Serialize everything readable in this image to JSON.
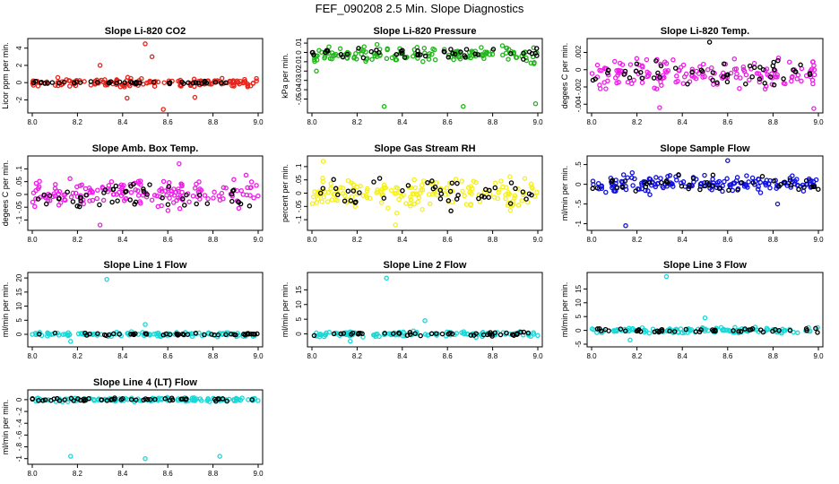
{
  "page_title": "FEF_090208  2.5 Min. Slope Diagnostics",
  "chart_data": [
    {
      "type": "scatter",
      "title": "Slope Li-820 CO2",
      "ylabel": "Licor ppm per min.",
      "xlim": [
        8.0,
        9.0
      ],
      "ylim": [
        -3.2,
        4.8
      ],
      "yticks": [
        -2,
        0,
        2,
        4
      ],
      "xticks": [
        8.0,
        8.2,
        8.4,
        8.6,
        8.8,
        9.0
      ],
      "series": [
        {
          "name": "fill",
          "color": "#e8231a",
          "n": 150,
          "spread": 0.4,
          "outliers": [
            [
              8.5,
              4.5
            ],
            [
              8.53,
              3.0
            ],
            [
              8.42,
              -1.8
            ],
            [
              8.58,
              -3.1
            ],
            [
              8.72,
              -1.7
            ],
            [
              8.3,
              2.0
            ]
          ]
        },
        {
          "name": "black",
          "color": "#000000",
          "n": 45,
          "spread": 0.12
        }
      ]
    },
    {
      "type": "scatter",
      "title": "Slope Li-820 Pressure",
      "ylabel": "kPa per min.",
      "xlim": [
        8.0,
        9.0
      ],
      "ylim": [
        -0.062,
        0.012
      ],
      "yticks": [
        0.01,
        0.0,
        -0.01,
        -0.02,
        -0.03,
        -0.04,
        -0.05
      ],
      "xticks": [
        8.0,
        8.2,
        8.4,
        8.6,
        8.8,
        9.0
      ],
      "series": [
        {
          "name": "fill",
          "color": "#22b51c",
          "n": 150,
          "spread": 0.0065,
          "center": -0.002,
          "outliers": [
            [
              8.32,
              -0.058
            ],
            [
              8.67,
              -0.058
            ],
            [
              8.99,
              -0.055
            ],
            [
              8.02,
              -0.02
            ]
          ]
        },
        {
          "name": "black",
          "color": "#000000",
          "n": 45,
          "spread": 0.004,
          "center": -0.001
        }
      ]
    },
    {
      "type": "scatter",
      "title": "Slope Li-820 Temp.",
      "ylabel": "degees C per min.",
      "xlim": [
        8.0,
        9.0
      ],
      "ylim": [
        -0.0047,
        0.0033
      ],
      "yticks": [
        0.002,
        0.0,
        -0.002,
        -0.004
      ],
      "xticks": [
        8.0,
        8.2,
        8.4,
        8.6,
        8.8,
        9.0
      ],
      "series": [
        {
          "name": "fill",
          "color": "#ee1ee8",
          "n": 160,
          "spread": 0.0014,
          "center": -0.0005,
          "outliers": [
            [
              8.98,
              -0.0045
            ],
            [
              8.3,
              -0.0044
            ]
          ]
        },
        {
          "name": "black",
          "color": "#000000",
          "n": 50,
          "spread": 0.0012,
          "center": -0.0003,
          "outliers": [
            [
              8.52,
              0.0032
            ]
          ]
        }
      ]
    },
    {
      "type": "scatter",
      "title": "Slope Amb. Box Temp.",
      "ylabel": "degees C per min.",
      "xlim": [
        8.0,
        9.0
      ],
      "ylim": [
        -0.13,
        0.14
      ],
      "yticks": [
        -0.1,
        -0.05,
        0.0,
        0.05,
        0.1
      ],
      "xticks": [
        8.0,
        8.2,
        8.4,
        8.6,
        8.8,
        9.0
      ],
      "series": [
        {
          "name": "fill",
          "color": "#ee1ee8",
          "n": 170,
          "spread": 0.045,
          "outliers": [
            [
              8.65,
              0.12
            ],
            [
              8.3,
              -0.12
            ]
          ]
        },
        {
          "name": "black",
          "color": "#000000",
          "n": 50,
          "spread": 0.04
        }
      ]
    },
    {
      "type": "scatter",
      "title": "Slope Gas Stream RH",
      "ylabel": "percent per min.",
      "xlim": [
        8.0,
        9.0
      ],
      "ylim": [
        -0.13,
        0.13
      ],
      "yticks": [
        -0.1,
        -0.05,
        0.0,
        0.05,
        0.1
      ],
      "xticks": [
        8.0,
        8.2,
        8.4,
        8.6,
        8.8,
        9.0
      ],
      "series": [
        {
          "name": "fill",
          "color": "#f5f01c",
          "n": 170,
          "spread": 0.045,
          "outliers": [
            [
              8.05,
              0.12
            ],
            [
              8.37,
              -0.12
            ]
          ]
        },
        {
          "name": "black",
          "color": "#000000",
          "n": 45,
          "spread": 0.04
        }
      ]
    },
    {
      "type": "scatter",
      "title": "Slope Sample Flow",
      "ylabel": "ml/min per min.",
      "xlim": [
        8.0,
        9.0
      ],
      "ylim": [
        -1.1,
        0.65
      ],
      "yticks": [
        0.5,
        0.0,
        -0.5,
        -1.0
      ],
      "xticks": [
        8.0,
        8.2,
        8.4,
        8.6,
        8.8,
        9.0
      ],
      "series": [
        {
          "name": "fill",
          "color": "#1212e0",
          "n": 170,
          "spread": 0.18,
          "outliers": [
            [
              8.15,
              -1.05
            ],
            [
              8.6,
              0.6
            ],
            [
              8.82,
              -0.5
            ]
          ]
        },
        {
          "name": "black",
          "color": "#000000",
          "n": 45,
          "spread": 0.15
        }
      ]
    },
    {
      "type": "scatter",
      "title": "Slope Line 1 Flow",
      "ylabel": "ml/min per min.",
      "xlim": [
        8.0,
        9.0
      ],
      "ylim": [
        -3.5,
        21
      ],
      "yticks": [
        0,
        5,
        10,
        15,
        20
      ],
      "xticks": [
        8.0,
        8.2,
        8.4,
        8.6,
        8.8,
        9.0
      ],
      "series": [
        {
          "name": "fill",
          "color": "#18d8d8",
          "n": 120,
          "spread": 0.6,
          "outliers": [
            [
              8.33,
              19.5
            ],
            [
              8.5,
              3.5
            ],
            [
              8.17,
              -2.5
            ]
          ]
        },
        {
          "name": "black",
          "color": "#000000",
          "n": 45,
          "spread": 0.35
        }
      ]
    },
    {
      "type": "scatter",
      "title": "Slope Line 2 Flow",
      "ylabel": "ml/min per min.",
      "xlim": [
        8.0,
        9.0
      ],
      "ylim": [
        -3.5,
        20
      ],
      "yticks": [
        0,
        5,
        10,
        15
      ],
      "xticks": [
        8.0,
        8.2,
        8.4,
        8.6,
        8.8,
        9.0
      ],
      "series": [
        {
          "name": "fill",
          "color": "#18d8d8",
          "n": 120,
          "spread": 0.7,
          "outliers": [
            [
              8.33,
              19.0
            ],
            [
              8.5,
              4.5
            ],
            [
              8.17,
              -2.5
            ]
          ]
        },
        {
          "name": "black",
          "color": "#000000",
          "n": 45,
          "spread": 0.5
        }
      ]
    },
    {
      "type": "scatter",
      "title": "Slope Line 3 Flow",
      "ylabel": "ml/min per min.",
      "xlim": [
        8.0,
        9.0
      ],
      "ylim": [
        -5,
        20
      ],
      "yticks": [
        -5,
        0,
        5,
        10,
        15
      ],
      "xticks": [
        8.0,
        8.2,
        8.4,
        8.6,
        8.8,
        9.0
      ],
      "series": [
        {
          "name": "fill",
          "color": "#18d8d8",
          "n": 120,
          "spread": 0.8,
          "outliers": [
            [
              8.33,
              19.5
            ],
            [
              8.5,
              4.5
            ],
            [
              8.17,
              -3.5
            ]
          ]
        },
        {
          "name": "black",
          "color": "#000000",
          "n": 45,
          "spread": 0.5
        }
      ]
    },
    {
      "type": "scatter",
      "title": "Slope Line 4 (LT) Flow",
      "ylabel": "ml/min per min.",
      "xlim": [
        8.0,
        9.0
      ],
      "ylim": [
        -1.05,
        0.12
      ],
      "yticks": [
        0.0,
        -0.2,
        -0.4,
        -0.6,
        -0.8,
        -1.0
      ],
      "xticks": [
        8.0,
        8.2,
        8.4,
        8.6,
        8.8,
        9.0
      ],
      "series": [
        {
          "name": "fill",
          "color": "#18d8d8",
          "n": 130,
          "spread": 0.025,
          "outliers": [
            [
              8.17,
              -0.96
            ],
            [
              8.5,
              -1.0
            ],
            [
              8.83,
              -0.96
            ]
          ]
        },
        {
          "name": "black",
          "color": "#000000",
          "n": 50,
          "spread": 0.02
        }
      ]
    }
  ]
}
